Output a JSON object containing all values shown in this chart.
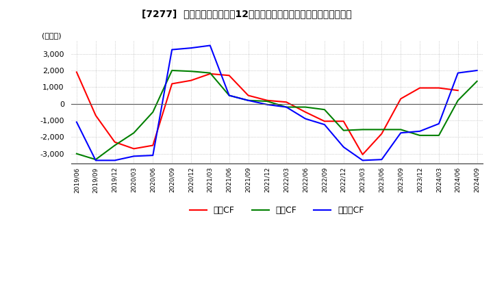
{
  "title": "[7277]  キャッシュフローの12か月移動合計の対前年同期増減額の推移",
  "ylabel": "(百万円)",
  "ylim": [
    -3600,
    3800
  ],
  "yticks": [
    -3000,
    -2000,
    -1000,
    0,
    1000,
    2000,
    3000
  ],
  "dates": [
    "2019/06",
    "2019/09",
    "2019/12",
    "2020/03",
    "2020/06",
    "2020/09",
    "2020/12",
    "2021/03",
    "2021/06",
    "2021/09",
    "2021/12",
    "2022/03",
    "2022/06",
    "2022/09",
    "2022/12",
    "2023/03",
    "2023/06",
    "2023/09",
    "2023/12",
    "2024/03",
    "2024/06",
    "2024/09"
  ],
  "operating_cf": [
    1900,
    -700,
    -2300,
    -2700,
    -2500,
    1200,
    1400,
    1800,
    1700,
    500,
    200,
    100,
    -500,
    -1050,
    -1050,
    -3050,
    -1800,
    300,
    950,
    950,
    800,
    null
  ],
  "investing_cf": [
    -3000,
    -3350,
    -2500,
    -1750,
    -500,
    2000,
    1950,
    1850,
    500,
    200,
    150,
    -200,
    -200,
    -350,
    -1600,
    -1550,
    -1550,
    -1550,
    -1900,
    -1900,
    200,
    1350
  ],
  "free_cf": [
    -1100,
    -3400,
    -3400,
    -3150,
    -3100,
    3250,
    3350,
    3500,
    500,
    200,
    -50,
    -200,
    -900,
    -1250,
    -2600,
    -3400,
    -3350,
    -1750,
    -1650,
    -1200,
    1850,
    2000
  ],
  "line_colors": {
    "operating": "#ff0000",
    "investing": "#008000",
    "free": "#0000ff"
  },
  "legend_labels": [
    "営業CF",
    "投資CF",
    "フリーCF"
  ],
  "background_color": "#ffffff",
  "grid_color": "#aaaaaa"
}
